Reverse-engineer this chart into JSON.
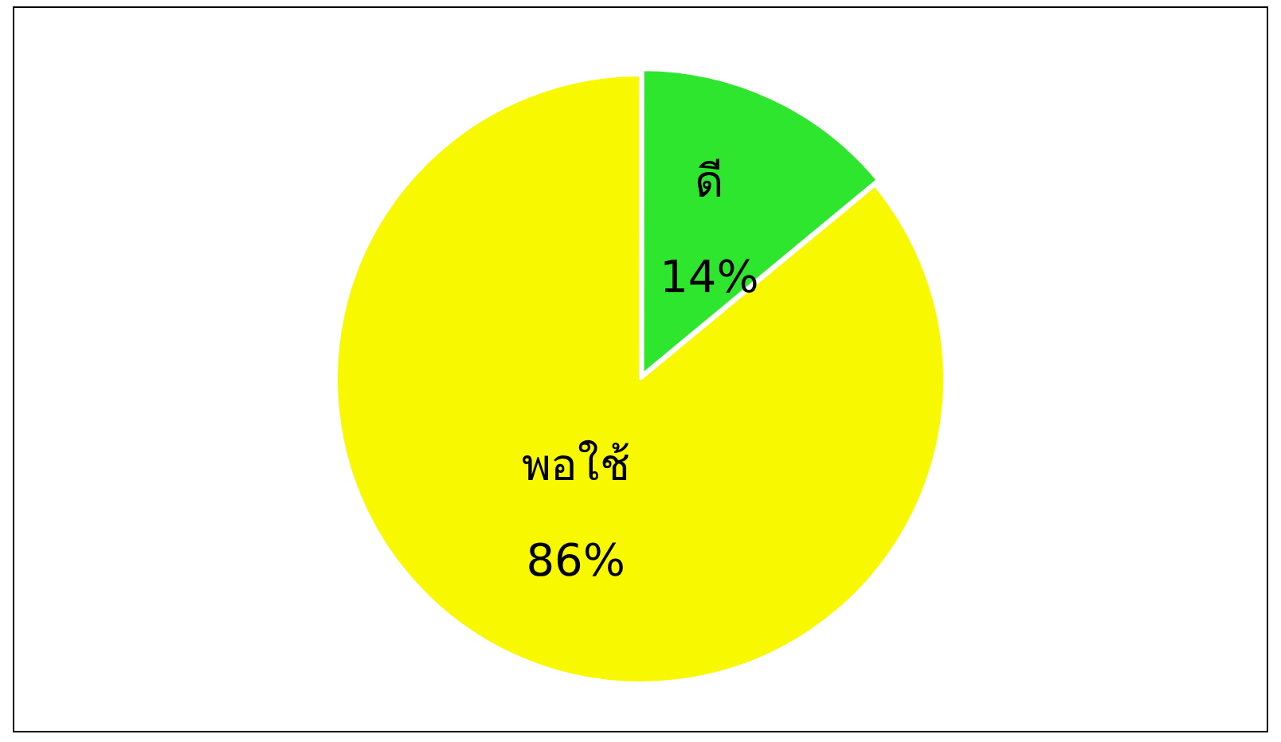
{
  "chart_data": {
    "type": "pie",
    "categories": [
      "ดี",
      "พอใช้"
    ],
    "values": [
      14,
      86
    ],
    "colors": [
      "#2ee62e",
      "#f8f800"
    ],
    "value_labels": [
      "14%",
      "86%"
    ],
    "legend": false
  }
}
